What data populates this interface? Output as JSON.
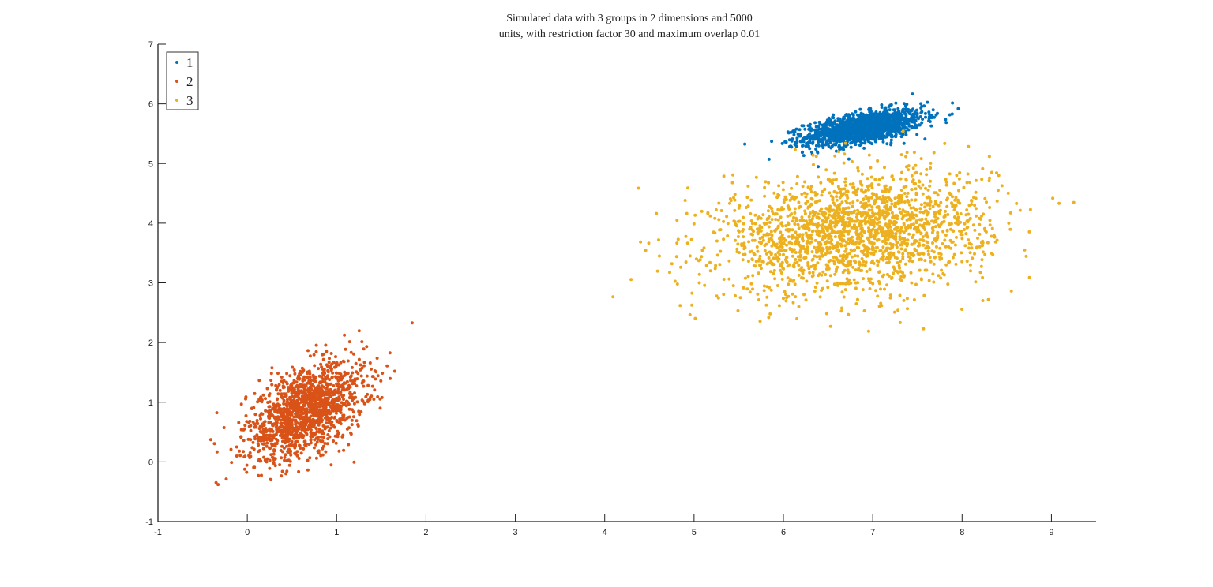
{
  "chart_data": {
    "type": "scatter",
    "title": [
      "Simulated data with 3 groups in 2 dimensions and 5000",
      "units, with restriction factor 30 and maximum overlap 0.01"
    ],
    "xlabel": "",
    "ylabel": "",
    "xlim": [
      -1,
      9.5
    ],
    "ylim": [
      -1,
      7
    ],
    "xticks": [
      "-1",
      "0",
      "1",
      "2",
      "3",
      "4",
      "5",
      "6",
      "7",
      "8",
      "9"
    ],
    "yticks": [
      "-1",
      "0",
      "1",
      "2",
      "3",
      "4",
      "5",
      "6",
      "7"
    ],
    "grid": false,
    "legend_position": "top-left",
    "series": [
      {
        "name": "1",
        "color": "#0072BD",
        "center": [
          6.9,
          5.6
        ],
        "std": [
          0.33,
          0.15
        ],
        "correlation": 0.55
      },
      {
        "name": "2",
        "color": "#D95319",
        "center": [
          0.65,
          0.85
        ],
        "std": [
          0.33,
          0.4
        ],
        "correlation": 0.5
      },
      {
        "name": "3",
        "color": "#EDB120",
        "center": [
          6.8,
          3.85
        ],
        "std": [
          0.75,
          0.5
        ],
        "correlation": 0.2
      }
    ]
  }
}
